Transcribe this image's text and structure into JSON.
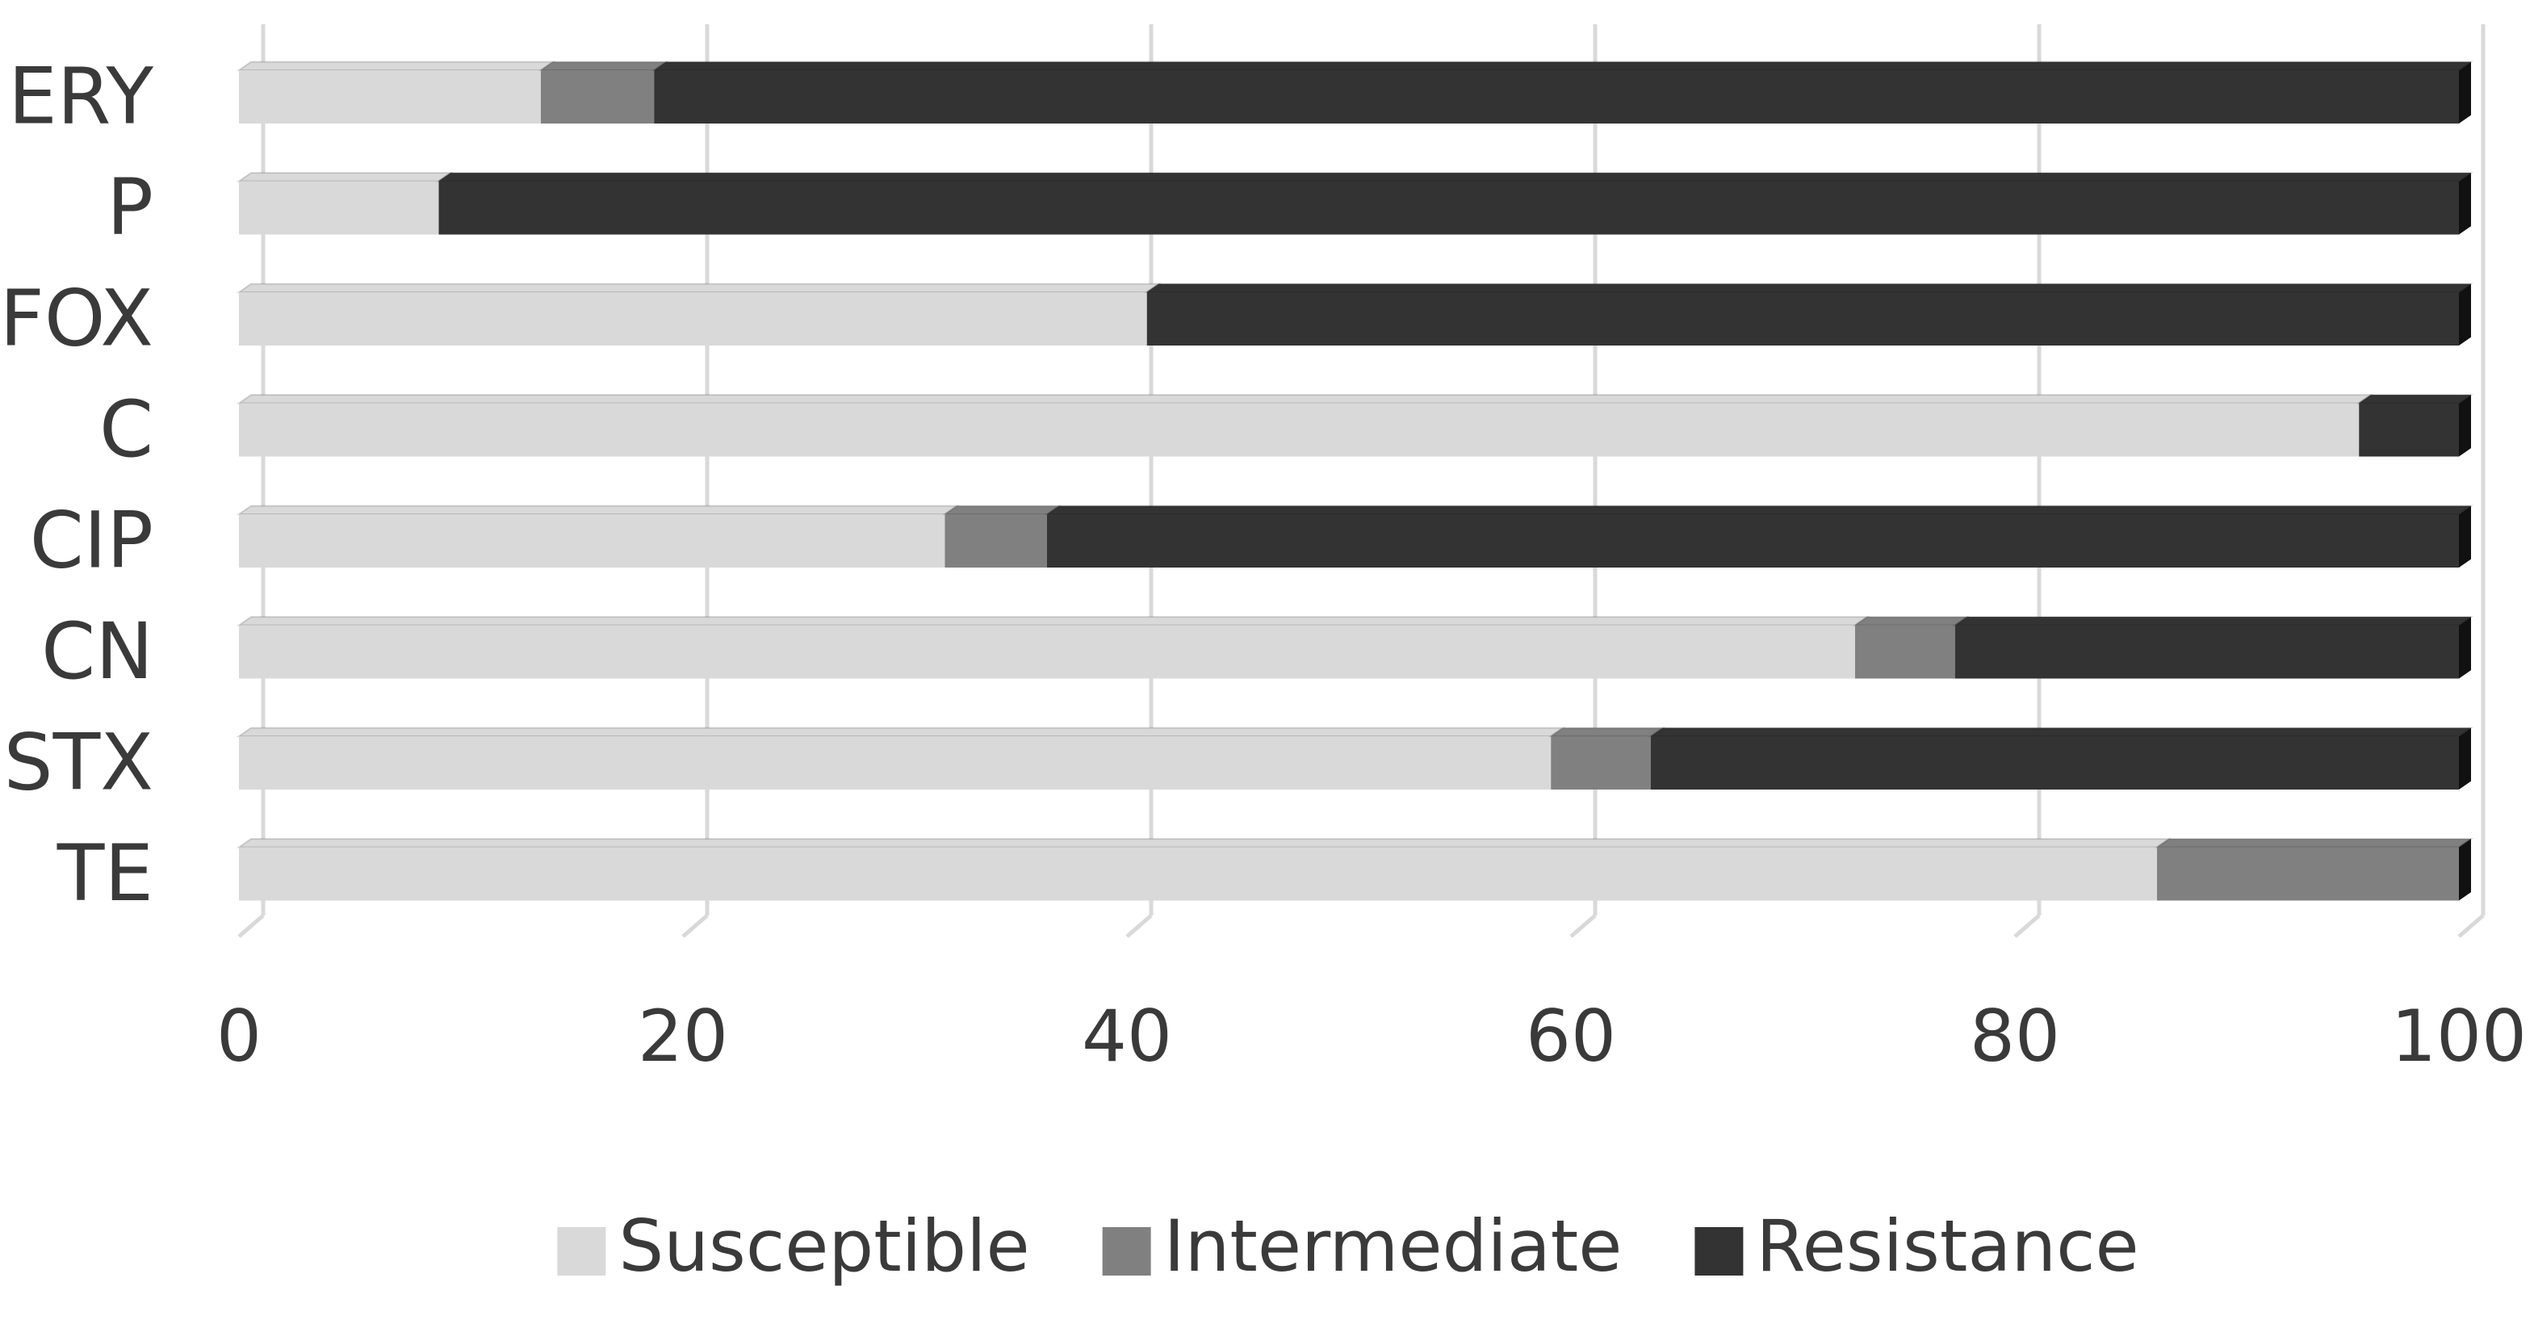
{
  "chart_data": {
    "type": "bar",
    "orientation": "horizontal",
    "stacked": true,
    "categories": [
      "ERY",
      "P",
      "FOX",
      "C",
      "CIP",
      "CN",
      "STX",
      "TE"
    ],
    "series": [
      {
        "name": "Susceptible",
        "color": "#d9d9d9",
        "values": [
          13.6,
          9.0,
          40.9,
          95.5,
          31.8,
          72.8,
          59.1,
          86.4
        ]
      },
      {
        "name": "Intermediate",
        "color": "#808080",
        "values": [
          5.1,
          0,
          0,
          0,
          4.6,
          4.5,
          4.5,
          13.6
        ]
      },
      {
        "name": "Resistance",
        "color": "#333333",
        "values": [
          81.3,
          91.0,
          59.1,
          4.5,
          63.6,
          22.7,
          36.4,
          0
        ]
      }
    ],
    "xlim": [
      0,
      100
    ],
    "xticks": [
      0,
      20,
      40,
      60,
      80,
      100
    ],
    "grid": true,
    "legend": "bottom"
  }
}
